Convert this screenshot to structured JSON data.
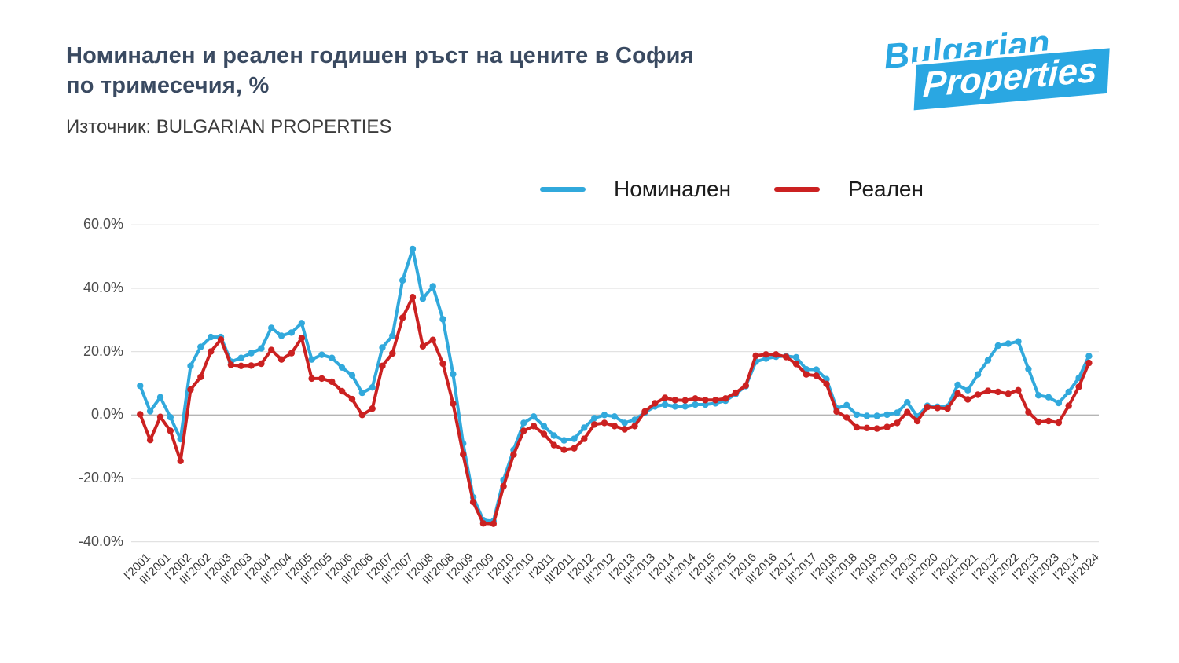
{
  "header": {
    "title_line1": "Номинален и реален годишен ръст на цените в София",
    "title_line2": "по тримесечия, %",
    "source": "Източник: BULGARIAN PROPERTIES"
  },
  "logo": {
    "line1": "Bulgarian",
    "line2": "Properties",
    "color": "#2aa7e2"
  },
  "legend": [
    {
      "label": "Номинален",
      "color": "#31a9dc"
    },
    {
      "label": "Реален",
      "color": "#cb2121"
    }
  ],
  "chart_data": {
    "type": "line",
    "title": "Номинален и реален годишен ръст на цените в София по тримесечия, %",
    "xlabel": "",
    "ylabel": "",
    "ylim": [
      -40,
      60
    ],
    "grid": true,
    "legend_position": "top",
    "x_start": "I'2001",
    "x_end": "III'2024",
    "frequency": "quarterly",
    "y_ticks": [
      "60.0%",
      "40.0%",
      "20.0%",
      "0.0%",
      "-20.0%",
      "-40.0%"
    ],
    "y_tick_values": [
      60,
      40,
      20,
      0,
      -20,
      -40
    ],
    "x_tick_labels": [
      "I'2001",
      "III'2001",
      "I'2002",
      "III'2002",
      "I'2003",
      "III'2003",
      "I'2004",
      "III'2004",
      "I'2005",
      "III'2005",
      "I'2006",
      "III'2006",
      "I'2007",
      "III'2007",
      "I'2008",
      "III'2008",
      "I'2009",
      "III'2009",
      "I'2010",
      "III'2010",
      "I'2011",
      "III'2011",
      "I'2012",
      "III'2012",
      "I'2013",
      "III'2013",
      "I'2014",
      "III'2014",
      "I'2015",
      "III'2015",
      "I'2016",
      "III'2016",
      "I'2017",
      "III'2017",
      "I'2018",
      "III'2018",
      "I'2019",
      "III'2019",
      "I'2020",
      "III'2020",
      "I'2021",
      "III'2021",
      "I'2022",
      "III'2022",
      "I'2023",
      "III'2023",
      "I'2024",
      "III'2024"
    ],
    "series": [
      {
        "name": "Номинален",
        "color": "#31a9dc",
        "values": [
          9.2,
          1.2,
          5.6,
          -0.7,
          -7.6,
          15.5,
          21.5,
          24.6,
          24.6,
          16.8,
          18.0,
          19.5,
          21.0,
          27.5,
          25.0,
          26.0,
          29.0,
          17.5,
          19.0,
          18.0,
          15.0,
          12.5,
          7.0,
          8.7,
          21.3,
          25.0,
          42.5,
          52.4,
          36.7,
          40.6,
          30.2,
          12.9,
          -9.0,
          -26.0,
          -33.2,
          -33.5,
          -20.5,
          -11.0,
          -2.5,
          -0.5,
          -3.5,
          -6.5,
          -8.0,
          -7.5,
          -4.0,
          -1.0,
          0.0,
          -0.5,
          -2.5,
          -1.5,
          0.8,
          2.7,
          3.3,
          2.7,
          2.7,
          3.3,
          3.3,
          3.7,
          4.5,
          6.6,
          9.1,
          16.8,
          17.8,
          18.4,
          18.6,
          18.2,
          14.4,
          14.3,
          11.3,
          2.1,
          3.1,
          0.1,
          -0.3,
          -0.3,
          0.1,
          0.7,
          4.0,
          -0.5,
          2.9,
          2.6,
          2.6,
          9.5,
          7.8,
          12.8,
          17.3,
          21.9,
          22.5,
          23.2,
          14.5,
          6.2,
          5.6,
          3.8,
          7.3,
          11.7,
          18.6
        ]
      },
      {
        "name": "Реален",
        "color": "#cb2121",
        "values": [
          0.2,
          -7.9,
          -0.6,
          -5.0,
          -14.5,
          8.0,
          12.0,
          20.0,
          23.8,
          15.8,
          15.5,
          15.6,
          16.2,
          20.5,
          17.5,
          19.5,
          24.3,
          11.5,
          11.5,
          10.5,
          7.5,
          5.0,
          0.0,
          2.0,
          15.5,
          19.4,
          30.7,
          37.2,
          21.7,
          23.7,
          16.2,
          3.6,
          -12.4,
          -27.5,
          -34.2,
          -34.3,
          -22.5,
          -12.5,
          -5.0,
          -3.5,
          -6.0,
          -9.5,
          -11.0,
          -10.5,
          -7.5,
          -3.0,
          -2.5,
          -3.5,
          -4.5,
          -3.5,
          1.1,
          3.7,
          5.4,
          4.7,
          4.6,
          5.2,
          4.7,
          4.7,
          5.2,
          7.0,
          9.3,
          18.7,
          19.1,
          19.1,
          18.3,
          16.1,
          12.8,
          12.4,
          9.8,
          1.1,
          -0.8,
          -3.9,
          -4.1,
          -4.3,
          -3.8,
          -2.5,
          0.9,
          -1.9,
          2.5,
          2.2,
          2.0,
          6.8,
          4.9,
          6.4,
          7.6,
          7.3,
          6.7,
          7.8,
          0.9,
          -2.2,
          -1.9,
          -2.4,
          2.9,
          8.9,
          16.4
        ]
      }
    ]
  },
  "colors": {
    "nominal": "#31a9dc",
    "real": "#cb2121",
    "grid": "#e2e2e2",
    "zero_line": "#b5b5b5",
    "title": "#3a4a61"
  }
}
